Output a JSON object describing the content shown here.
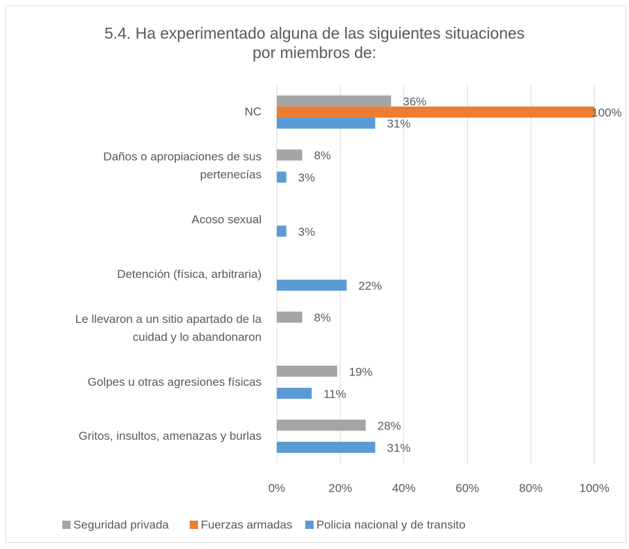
{
  "chart_data": {
    "type": "hbar",
    "title": "5.4. Ha experimentado alguna de las siguientes situaciones\npor miembros de:",
    "categories": [
      "NC",
      "Daños o apropiaciones de sus\npertenecías",
      "Acoso sexual",
      "Detención (física, arbitraria)",
      "Le llevaron a un sitio apartado de la\ncuidad y lo abandonaron",
      "Golpes u otras agresiones físicas",
      "Gritos, insultos, amenazas y burlas"
    ],
    "series": [
      {
        "name": "Seguridad privada",
        "color": "#a5a5a5",
        "values": [
          36,
          8,
          null,
          null,
          8,
          19,
          28
        ],
        "value_labels": [
          "36%",
          "8%",
          null,
          null,
          "8%",
          "19%",
          "28%"
        ]
      },
      {
        "name": "Fuerzas armadas",
        "color": "#ed7d31",
        "values": [
          100,
          null,
          null,
          null,
          null,
          null,
          null
        ],
        "value_labels": [
          "100%",
          null,
          null,
          null,
          null,
          null,
          null
        ]
      },
      {
        "name": "Policia nacional y de transito",
        "color": "#5b9bd5",
        "values": [
          31,
          3,
          3,
          22,
          null,
          11,
          31
        ],
        "value_labels": [
          "31%",
          "3%",
          "3%",
          "22%",
          null,
          "11%",
          "31%"
        ]
      }
    ],
    "xlim": [
      0,
      100
    ],
    "xticks": [
      {
        "value": 0,
        "label": "0%"
      },
      {
        "value": 20,
        "label": "20%"
      },
      {
        "value": 40,
        "label": "40%"
      },
      {
        "value": 60,
        "label": "60%"
      },
      {
        "value": 80,
        "label": "80%"
      },
      {
        "value": 100,
        "label": "100%"
      }
    ],
    "grid": true,
    "legend": "bottom"
  }
}
